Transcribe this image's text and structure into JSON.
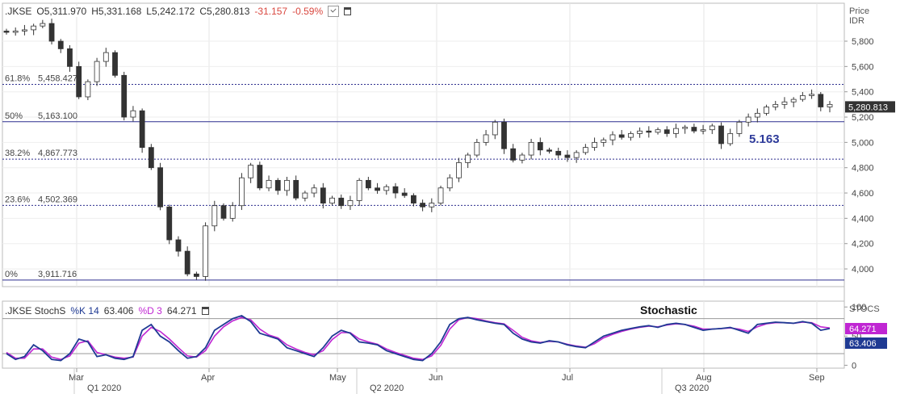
{
  "header": {
    "symbol": ".JKSE",
    "o_label": "O",
    "open": "5,311.970",
    "h_label": "H",
    "high": "5,331.168",
    "l_label": "L",
    "low": "5,242.172",
    "c_label": "C",
    "close": "5,280.813",
    "change": "-31.157",
    "change_pct": "-0.59%"
  },
  "price_axis": {
    "title_line1": "Price",
    "title_line2": "IDR"
  },
  "stoch_header": {
    "name": ".JKSE StochS",
    "k_label": "%K",
    "k_period": "14",
    "k_value": "63.406",
    "d_label": "%D",
    "d_period": "3",
    "d_value": "64.271"
  },
  "stoch_axis": {
    "title": "STOCS"
  },
  "chart_data": [
    {
      "type": "candlestick",
      "ylim": [
        3860,
        6100
      ],
      "yticks": [
        "5,800",
        "5,600",
        "5,400",
        "5,200",
        "5,000",
        "4,800",
        "4,600",
        "4,400",
        "4,200",
        "4,000"
      ],
      "ytick_values": [
        5800,
        5600,
        5400,
        5200,
        5000,
        4800,
        4600,
        4400,
        4200,
        4000
      ],
      "last_price_label": "5,280.813",
      "last_price": 5280.813,
      "annotation": "5.163",
      "fib_levels": [
        {
          "label": "61.8%",
          "value_text": "5,458.427",
          "value": 5458.427,
          "style": "dotted"
        },
        {
          "label": "50%",
          "value_text": "5,163.100",
          "value": 5163.1,
          "style": "solid"
        },
        {
          "label": "38.2%",
          "value_text": "4,867.773",
          "value": 4867.773,
          "style": "dotted"
        },
        {
          "label": "23.6%",
          "value_text": "4,502.369",
          "value": 4502.369,
          "style": "dotted"
        },
        {
          "label": "0%",
          "value_text": "3,911.716",
          "value": 3911.716,
          "style": "solid"
        }
      ],
      "x_month_labels": [
        "Mar",
        "Apr",
        "May",
        "Jun",
        "Jul",
        "Aug",
        "Sep"
      ],
      "x_quarter_labels": [
        "Q1 2020",
        "Q2 2020",
        "Q3 2020"
      ],
      "close_series": [
        5870,
        5880,
        5890,
        5920,
        5940,
        5800,
        5740,
        5600,
        5360,
        5480,
        5640,
        5710,
        5530,
        5200,
        5250,
        4960,
        4800,
        4490,
        4230,
        4140,
        3960,
        3940,
        4340,
        4500,
        4400,
        4500,
        4720,
        4820,
        4640,
        4700,
        4620,
        4700,
        4560,
        4600,
        4640,
        4520,
        4560,
        4500,
        4540,
        4700,
        4640,
        4620,
        4650,
        4600,
        4580,
        4520,
        4490,
        4520,
        4640,
        4720,
        4840,
        4900,
        5000,
        5060,
        5160,
        4950,
        4860,
        4900,
        5000,
        4940,
        4930,
        4900,
        4880,
        4920,
        4960,
        5000,
        5020,
        5060,
        5040,
        5070,
        5090,
        5080,
        5100,
        5070,
        5110,
        5120,
        5090,
        5100,
        5130,
        4990,
        5070,
        5160,
        5200,
        5230,
        5280,
        5300,
        5320,
        5340,
        5370,
        5380,
        5280,
        5300
      ],
      "stochastic": {
        "ylim": [
          -5,
          110
        ],
        "yticks": [
          "100",
          "50",
          "0"
        ],
        "ytick_values": [
          100,
          50,
          0
        ],
        "reference_lines": [
          80,
          20
        ],
        "title_annotation": "Stochastic",
        "k_label": "63.406",
        "d_label": "64.271",
        "k_color": "#1f3a93",
        "d_color": "#c026d3",
        "k_series": [
          20,
          10,
          15,
          35,
          25,
          10,
          8,
          20,
          45,
          40,
          15,
          18,
          12,
          10,
          15,
          60,
          70,
          50,
          40,
          25,
          12,
          15,
          30,
          60,
          70,
          80,
          85,
          75,
          55,
          50,
          45,
          30,
          25,
          20,
          15,
          30,
          50,
          60,
          55,
          40,
          38,
          35,
          25,
          20,
          15,
          10,
          8,
          20,
          40,
          70,
          80,
          82,
          78,
          75,
          72,
          70,
          55,
          45,
          40,
          38,
          42,
          40,
          35,
          32,
          30,
          40,
          50,
          55,
          60,
          63,
          66,
          68,
          65,
          70,
          72,
          70,
          65,
          60,
          62,
          63,
          65,
          60,
          55,
          70,
          72,
          74,
          73,
          72,
          75,
          72,
          60,
          63
        ],
        "d_series": [
          22,
          12,
          12,
          28,
          28,
          14,
          10,
          16,
          38,
          42,
          22,
          18,
          14,
          12,
          14,
          50,
          65,
          58,
          45,
          30,
          16,
          14,
          25,
          50,
          66,
          76,
          82,
          78,
          62,
          52,
          47,
          35,
          28,
          22,
          18,
          25,
          44,
          56,
          56,
          45,
          40,
          36,
          28,
          22,
          17,
          12,
          10,
          16,
          34,
          62,
          78,
          82,
          80,
          76,
          73,
          71,
          60,
          48,
          42,
          39,
          41,
          40,
          36,
          33,
          31,
          37,
          47,
          53,
          58,
          62,
          65,
          67,
          66,
          69,
          71,
          70,
          67,
          62,
          62,
          63,
          64,
          62,
          58,
          66,
          71,
          73,
          73,
          72,
          74,
          73,
          66,
          64
        ]
      }
    }
  ]
}
